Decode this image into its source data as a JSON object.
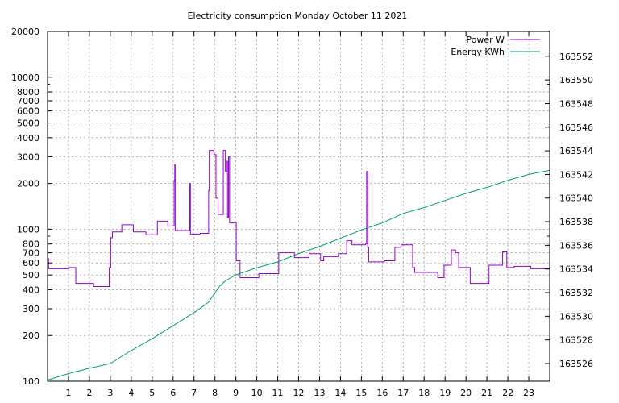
{
  "chart_data": {
    "type": "line",
    "title": "Electricity consumption Monday October 11 2021",
    "xlabel": "",
    "ylabel": "",
    "y2label": "",
    "x_ticks": [
      1,
      2,
      3,
      4,
      5,
      6,
      7,
      8,
      9,
      10,
      11,
      12,
      13,
      14,
      15,
      16,
      17,
      18,
      19,
      20,
      21,
      22,
      23
    ],
    "xlim": [
      0,
      24
    ],
    "y_log": true,
    "ylim": [
      100,
      20000
    ],
    "y_ticks": [
      100,
      200,
      300,
      400,
      500,
      600,
      700,
      800,
      1000,
      2000,
      3000,
      4000,
      5000,
      6000,
      7000,
      8000,
      10000,
      20000
    ],
    "y2lim": [
      163524.5,
      163554.1
    ],
    "y2_ticks": [
      163526,
      163528,
      163530,
      163532,
      163534,
      163536,
      163538,
      163540,
      163542,
      163544,
      163546,
      163548,
      163550,
      163552
    ],
    "grid": true,
    "legend_position": "top-right",
    "series": [
      {
        "name": "Power W",
        "axis": "left",
        "color": "#9400d3",
        "step": true,
        "points": [
          [
            0,
            640
          ],
          [
            0.05,
            550
          ],
          [
            1.0,
            560
          ],
          [
            1.35,
            440
          ],
          [
            2.2,
            420
          ],
          [
            2.95,
            560
          ],
          [
            3.02,
            880
          ],
          [
            3.1,
            960
          ],
          [
            3.55,
            1070
          ],
          [
            4.1,
            960
          ],
          [
            4.7,
            920
          ],
          [
            5.25,
            1130
          ],
          [
            5.75,
            1050
          ],
          [
            6.05,
            2100
          ],
          [
            6.08,
            2650
          ],
          [
            6.1,
            980
          ],
          [
            6.8,
            2000
          ],
          [
            6.83,
            930
          ],
          [
            7.3,
            940
          ],
          [
            7.7,
            1800
          ],
          [
            7.73,
            3300
          ],
          [
            7.95,
            3100
          ],
          [
            8.05,
            1600
          ],
          [
            8.15,
            1250
          ],
          [
            8.4,
            3300
          ],
          [
            8.5,
            2400
          ],
          [
            8.55,
            2800
          ],
          [
            8.6,
            1200
          ],
          [
            8.65,
            3000
          ],
          [
            8.7,
            1100
          ],
          [
            9.02,
            620
          ],
          [
            9.2,
            480
          ],
          [
            10.1,
            510
          ],
          [
            11.05,
            700
          ],
          [
            11.8,
            650
          ],
          [
            12.5,
            690
          ],
          [
            13.05,
            620
          ],
          [
            13.2,
            660
          ],
          [
            13.9,
            690
          ],
          [
            14.3,
            840
          ],
          [
            14.55,
            790
          ],
          [
            15.2,
            800
          ],
          [
            15.25,
            2400
          ],
          [
            15.3,
            760
          ],
          [
            15.35,
            610
          ],
          [
            16.1,
            620
          ],
          [
            16.6,
            760
          ],
          [
            16.9,
            790
          ],
          [
            17.45,
            560
          ],
          [
            17.55,
            520
          ],
          [
            18.65,
            480
          ],
          [
            18.95,
            580
          ],
          [
            19.3,
            730
          ],
          [
            19.5,
            700
          ],
          [
            19.65,
            560
          ],
          [
            20.2,
            440
          ],
          [
            21.1,
            580
          ],
          [
            21.75,
            710
          ],
          [
            21.95,
            560
          ],
          [
            22.3,
            570
          ],
          [
            23.1,
            550
          ],
          [
            24,
            550
          ]
        ]
      },
      {
        "name": "Energy KWh",
        "axis": "right",
        "color": "#009e73",
        "step": false,
        "points": [
          [
            0,
            163524.6
          ],
          [
            1,
            163525.15
          ],
          [
            2,
            163525.6
          ],
          [
            3,
            163526.0
          ],
          [
            4,
            163527.1
          ],
          [
            5,
            163528.1
          ],
          [
            6,
            163529.2
          ],
          [
            7,
            163530.3
          ],
          [
            7.7,
            163531.2
          ],
          [
            8.2,
            163532.5
          ],
          [
            8.5,
            163533.0
          ],
          [
            9.0,
            163533.5
          ],
          [
            10,
            163534.1
          ],
          [
            11,
            163534.6
          ],
          [
            12,
            163535.3
          ],
          [
            13,
            163535.9
          ],
          [
            14,
            163536.6
          ],
          [
            15,
            163537.3
          ],
          [
            16,
            163537.9
          ],
          [
            17,
            163538.7
          ],
          [
            18,
            163539.2
          ],
          [
            19,
            163539.8
          ],
          [
            20,
            163540.4
          ],
          [
            21,
            163540.9
          ],
          [
            22,
            163541.5
          ],
          [
            23,
            163542.0
          ],
          [
            24,
            163542.35
          ]
        ]
      }
    ]
  }
}
